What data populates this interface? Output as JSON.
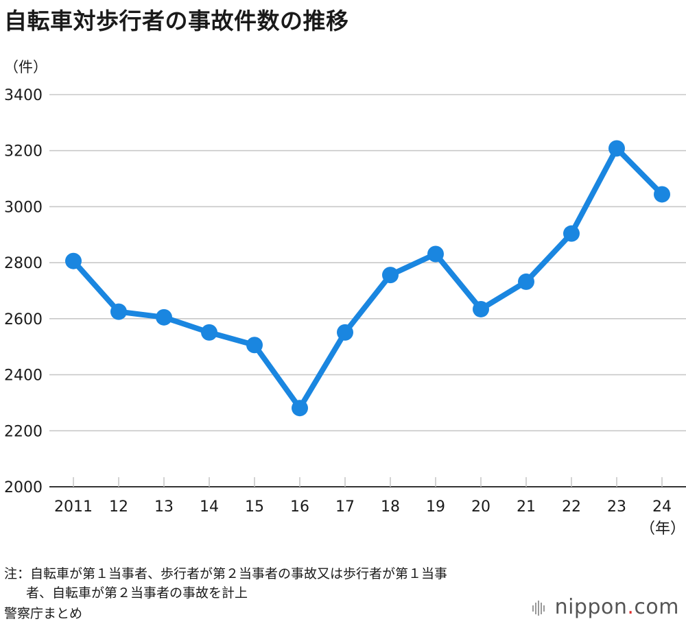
{
  "title": "自転車対歩行者の事故件数の推移",
  "y_unit": "（件）",
  "x_unit": "（年）",
  "notes": {
    "line1": "注：自転車が第１当事者、歩行者が第２当事者の事故又は歩行者が第１当事",
    "line2": "者、自転車が第２当事者の事故を計上"
  },
  "source": "警察庁まとめ",
  "brand": {
    "name": "nippon",
    "dot": ".",
    "suffix": "com"
  },
  "colors": {
    "series": "#1a86e0",
    "grid": "#c8c8c8",
    "axis": "#333333"
  },
  "chart_data": {
    "type": "line",
    "categories": [
      "2011",
      "12",
      "13",
      "14",
      "15",
      "16",
      "17",
      "18",
      "19",
      "20",
      "21",
      "22",
      "23",
      "24"
    ],
    "values": [
      2806,
      2625,
      2605,
      2551,
      2506,
      2281,
      2551,
      2756,
      2831,
      2634,
      2732,
      2904,
      3208,
      3044
    ],
    "ylim": [
      2000,
      3400
    ],
    "yticks": [
      2000,
      2200,
      2400,
      2600,
      2800,
      3000,
      3200,
      3400
    ],
    "grid": true
  }
}
